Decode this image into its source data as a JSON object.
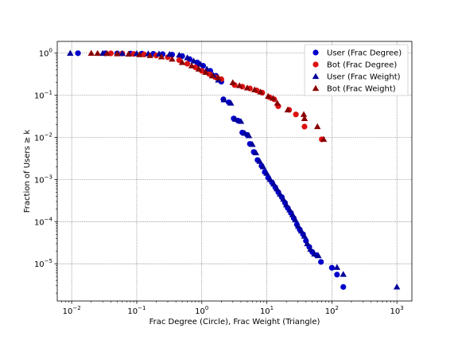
{
  "chart_data": {
    "type": "scatter",
    "xscale": "log",
    "yscale": "log",
    "xlim": [
      0.006,
      1700
    ],
    "ylim": [
      1.3e-06,
      1.9
    ],
    "grid": true,
    "xlabel": "Frac Degree (Circle), Frac Weight (Triangle)",
    "ylabel": "Fraction of Users ≥ k",
    "legend_position": "top-right",
    "x_ticks": [
      {
        "v": 0.01,
        "base": "10",
        "exp": "−2"
      },
      {
        "v": 0.1,
        "base": "10",
        "exp": "−1"
      },
      {
        "v": 1,
        "base": "10",
        "exp": "0"
      },
      {
        "v": 10,
        "base": "10",
        "exp": "1"
      },
      {
        "v": 100,
        "base": "10",
        "exp": "2"
      },
      {
        "v": 1000,
        "base": "10",
        "exp": "3"
      }
    ],
    "y_ticks": [
      {
        "v": 1e-05,
        "base": "10",
        "exp": "−5"
      },
      {
        "v": 0.0001,
        "base": "10",
        "exp": "−4"
      },
      {
        "v": 0.001,
        "base": "10",
        "exp": "−3"
      },
      {
        "v": 0.01,
        "base": "10",
        "exp": "−2"
      },
      {
        "v": 0.1,
        "base": "10",
        "exp": "−1"
      },
      {
        "v": 1,
        "base": "10",
        "exp": "0"
      }
    ],
    "series": [
      {
        "name": "User (Frac Degree)",
        "marker": "circle",
        "color": "#0000cc",
        "points": [
          [
            0.0125,
            0.995
          ],
          [
            0.033,
            0.99
          ],
          [
            0.05,
            0.985
          ],
          [
            0.08,
            0.98
          ],
          [
            0.12,
            0.975
          ],
          [
            0.18,
            0.965
          ],
          [
            0.25,
            0.95
          ],
          [
            0.35,
            0.92
          ],
          [
            0.5,
            0.85
          ],
          [
            0.65,
            0.72
          ],
          [
            0.85,
            0.6
          ],
          [
            1.05,
            0.5
          ],
          [
            1.35,
            0.38
          ],
          [
            1.65,
            0.29
          ],
          [
            2.0,
            0.21
          ],
          [
            2.15,
            0.08
          ],
          [
            2.6,
            0.068
          ],
          [
            3.1,
            0.028
          ],
          [
            3.6,
            0.025
          ],
          [
            4.2,
            0.013
          ],
          [
            5.0,
            0.0115
          ],
          [
            5.5,
            0.007
          ],
          [
            6.3,
            0.0045
          ],
          [
            7.2,
            0.0029
          ],
          [
            8.3,
            0.0021
          ],
          [
            9.3,
            0.0015
          ],
          [
            10.5,
            0.0011
          ],
          [
            12,
            0.00085
          ],
          [
            13.5,
            0.00065
          ],
          [
            15,
            0.0005
          ],
          [
            17,
            0.00038
          ],
          [
            19,
            0.00028
          ],
          [
            21,
            0.00021
          ],
          [
            23.5,
            0.00016
          ],
          [
            26,
            0.00012
          ],
          [
            29,
            8.5e-05
          ],
          [
            32,
            6.5e-05
          ],
          [
            36,
            5e-05
          ],
          [
            40,
            3.5e-05
          ],
          [
            45,
            2.5e-05
          ],
          [
            50,
            1.9e-05
          ],
          [
            58,
            1.6e-05
          ],
          [
            68,
            1.1e-05
          ],
          [
            100,
            8e-06
          ],
          [
            120,
            5.5e-06
          ],
          [
            150,
            2.8e-06
          ]
        ]
      },
      {
        "name": "Bot (Frac Degree)",
        "marker": "circle",
        "color": "#dd1111",
        "points": [
          [
            0.04,
            0.99
          ],
          [
            0.06,
            0.98
          ],
          [
            0.09,
            0.96
          ],
          [
            0.13,
            0.93
          ],
          [
            0.2,
            0.88
          ],
          [
            0.3,
            0.8
          ],
          [
            0.45,
            0.68
          ],
          [
            0.6,
            0.56
          ],
          [
            0.8,
            0.46
          ],
          [
            1.0,
            0.38
          ],
          [
            1.3,
            0.32
          ],
          [
            1.6,
            0.27
          ],
          [
            2.0,
            0.24
          ],
          [
            3.2,
            0.175
          ],
          [
            4.2,
            0.16
          ],
          [
            5.5,
            0.145
          ],
          [
            7,
            0.13
          ],
          [
            8.5,
            0.115
          ],
          [
            11,
            0.09
          ],
          [
            13,
            0.08
          ],
          [
            15,
            0.055
          ],
          [
            22,
            0.045
          ],
          [
            28,
            0.035
          ],
          [
            38,
            0.018
          ],
          [
            70,
            0.009
          ]
        ]
      },
      {
        "name": "User (Frac Weight)",
        "marker": "triangle",
        "color": "#000099",
        "points": [
          [
            0.0095,
            0.995
          ],
          [
            0.03,
            0.99
          ],
          [
            0.06,
            0.985
          ],
          [
            0.1,
            0.98
          ],
          [
            0.15,
            0.97
          ],
          [
            0.22,
            0.96
          ],
          [
            0.32,
            0.94
          ],
          [
            0.45,
            0.9
          ],
          [
            0.6,
            0.78
          ],
          [
            0.75,
            0.65
          ],
          [
            0.95,
            0.55
          ],
          [
            1.2,
            0.42
          ],
          [
            1.5,
            0.3
          ],
          [
            1.8,
            0.23
          ],
          [
            2.2,
            0.078
          ],
          [
            2.8,
            0.065
          ],
          [
            3.3,
            0.027
          ],
          [
            4.0,
            0.024
          ],
          [
            4.6,
            0.0125
          ],
          [
            5.3,
            0.011
          ],
          [
            6.0,
            0.0068
          ],
          [
            6.8,
            0.0043
          ],
          [
            7.8,
            0.0027
          ],
          [
            8.8,
            0.002
          ],
          [
            10,
            0.0014
          ],
          [
            11.3,
            0.001
          ],
          [
            12.8,
            0.00078
          ],
          [
            14.3,
            0.0006
          ],
          [
            16,
            0.00045
          ],
          [
            18,
            0.00034
          ],
          [
            20,
            0.00025
          ],
          [
            22.5,
            0.00019
          ],
          [
            25,
            0.000145
          ],
          [
            27.5,
            0.00011
          ],
          [
            30.5,
            7.8e-05
          ],
          [
            34,
            6e-05
          ],
          [
            38,
            4.5e-05
          ],
          [
            42,
            3e-05
          ],
          [
            47,
            2.2e-05
          ],
          [
            54,
            1.7e-05
          ],
          [
            62,
            1.55e-05
          ],
          [
            120,
            8.2e-06
          ],
          [
            150,
            5.6e-06
          ],
          [
            1000,
            2.8e-06
          ]
        ]
      },
      {
        "name": "Bot (Frac Weight)",
        "marker": "triangle",
        "color": "#880000",
        "points": [
          [
            0.02,
            0.995
          ],
          [
            0.025,
            0.99
          ],
          [
            0.035,
            0.985
          ],
          [
            0.05,
            0.97
          ],
          [
            0.075,
            0.95
          ],
          [
            0.11,
            0.92
          ],
          [
            0.16,
            0.88
          ],
          [
            0.24,
            0.82
          ],
          [
            0.35,
            0.72
          ],
          [
            0.5,
            0.6
          ],
          [
            0.7,
            0.5
          ],
          [
            0.9,
            0.42
          ],
          [
            1.15,
            0.35
          ],
          [
            1.45,
            0.29
          ],
          [
            1.8,
            0.26
          ],
          [
            3.0,
            0.2
          ],
          [
            3.8,
            0.17
          ],
          [
            5.0,
            0.15
          ],
          [
            6.5,
            0.135
          ],
          [
            8.0,
            0.12
          ],
          [
            10.5,
            0.095
          ],
          [
            12.5,
            0.085
          ],
          [
            14.5,
            0.065
          ],
          [
            21,
            0.045
          ],
          [
            37,
            0.035
          ],
          [
            38,
            0.028
          ],
          [
            60,
            0.018
          ],
          [
            75,
            0.009
          ]
        ]
      }
    ]
  }
}
